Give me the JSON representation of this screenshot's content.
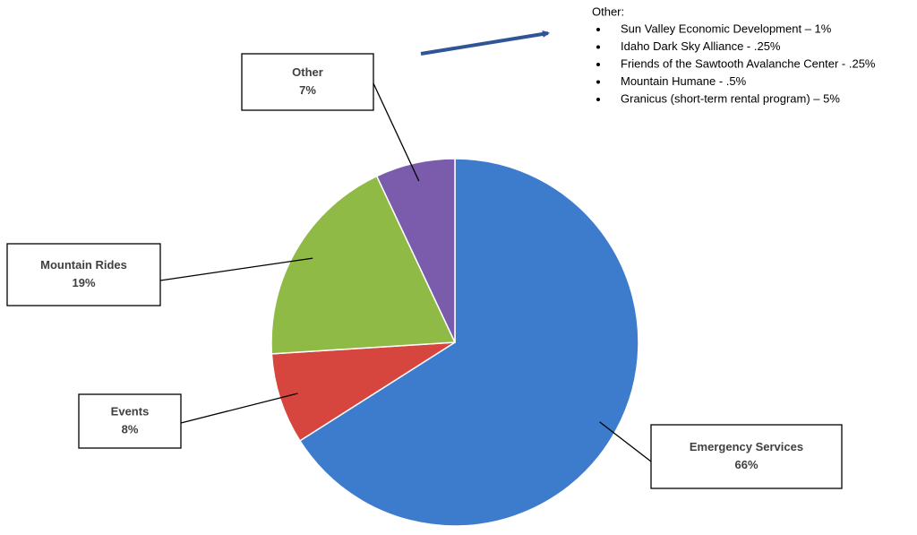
{
  "chart_data": {
    "type": "pie",
    "categories": [
      "Emergency Services",
      "Events",
      "Mountain Rides",
      "Other"
    ],
    "values": [
      66,
      8,
      19,
      7
    ],
    "value_labels": [
      "66%",
      "8%",
      "19%",
      "7%"
    ],
    "colors": [
      "#3d7ccc",
      "#d6463f",
      "#8fba45",
      "#7b5bab"
    ],
    "annotation": {
      "title": "Other:",
      "items": [
        "Sun Valley Economic Development – 1%",
        "Idaho Dark Sky Alliance - .25%",
        "Friends of the Sawtooth Avalanche Center - .25%",
        "Mountain Humane - .5%",
        "Granicus (short-term rental program) – 5%"
      ]
    }
  }
}
